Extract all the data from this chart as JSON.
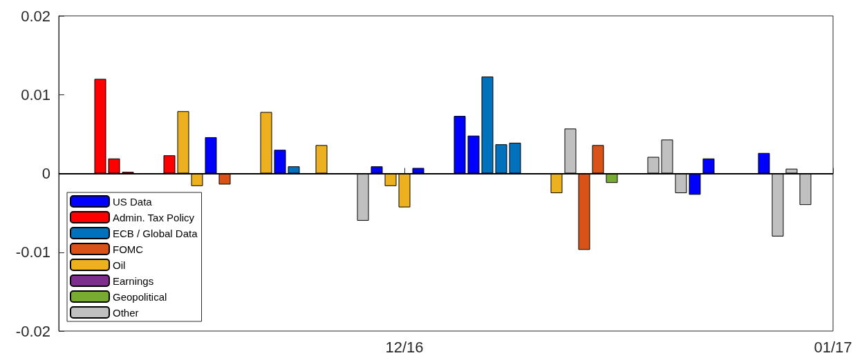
{
  "chart_data": {
    "type": "bar",
    "xlim": [
      "2016-11-06",
      "2017-01-01"
    ],
    "xticks": [
      {
        "value": "2016-12-01",
        "label": "12/16"
      },
      {
        "value": "2017-01-01",
        "label": "01/17"
      }
    ],
    "ylim": [
      -0.02,
      0.02
    ],
    "yticks": [
      -0.02,
      -0.01,
      0,
      0.01,
      0.02
    ],
    "grid": false,
    "legend": "bottom left",
    "ref_lines": [
      {
        "axis": "y",
        "value": 0,
        "color": "#000000"
      }
    ],
    "series": [
      {
        "name": "US Data",
        "color": "#0000ff",
        "x": [
          "2016-11-17",
          "2016-11-22",
          "2016-11-29",
          "2016-12-02",
          "2016-12-05",
          "2016-12-06",
          "2016-12-22",
          "2016-12-23",
          "2016-12-27"
        ],
        "values": [
          0.0046,
          0.003,
          0.0009,
          0.0007,
          0.0073,
          0.0048,
          -0.0027,
          0.0019,
          0.0026
        ]
      },
      {
        "name": "Admin. Tax Policy",
        "color": "#ff0000",
        "x": [
          "2016-11-09",
          "2016-11-10",
          "2016-11-11",
          "2016-11-14"
        ],
        "values": [
          0.012,
          0.0019,
          0.0002,
          0.0023
        ]
      },
      {
        "name": "ECB / Global Data",
        "color": "#0072bd",
        "x": [
          "2016-11-23",
          "2016-12-07",
          "2016-12-08",
          "2016-12-09"
        ],
        "values": [
          0.0009,
          0.0123,
          0.0037,
          0.0039
        ]
      },
      {
        "name": "FOMC",
        "color": "#d95319",
        "x": [
          "2016-11-18",
          "2016-12-14",
          "2016-12-15"
        ],
        "values": [
          -0.0014,
          -0.0097,
          0.0036
        ]
      },
      {
        "name": "Oil",
        "color": "#edb120",
        "x": [
          "2016-11-15",
          "2016-11-16",
          "2016-11-21",
          "2016-11-25",
          "2016-11-30",
          "2016-12-01",
          "2016-12-12"
        ],
        "values": [
          0.0079,
          -0.0016,
          0.0078,
          0.0036,
          -0.0016,
          -0.0043,
          -0.0025
        ]
      },
      {
        "name": "Earnings",
        "color": "#7e2f8e"
      },
      {
        "name": "Geopolitical",
        "color": "#77ac30",
        "x": [
          "2016-12-16"
        ],
        "values": [
          -0.0012
        ]
      },
      {
        "name": "Other",
        "color": "#c0c0c0",
        "x": [
          "2016-11-28",
          "2016-12-13",
          "2016-12-19",
          "2016-12-20",
          "2016-12-21",
          "2016-12-28",
          "2016-12-29",
          "2016-12-30"
        ],
        "values": [
          -0.006,
          0.0057,
          0.0021,
          0.0043,
          -0.0025,
          -0.008,
          0.0006,
          -0.004
        ]
      }
    ]
  }
}
